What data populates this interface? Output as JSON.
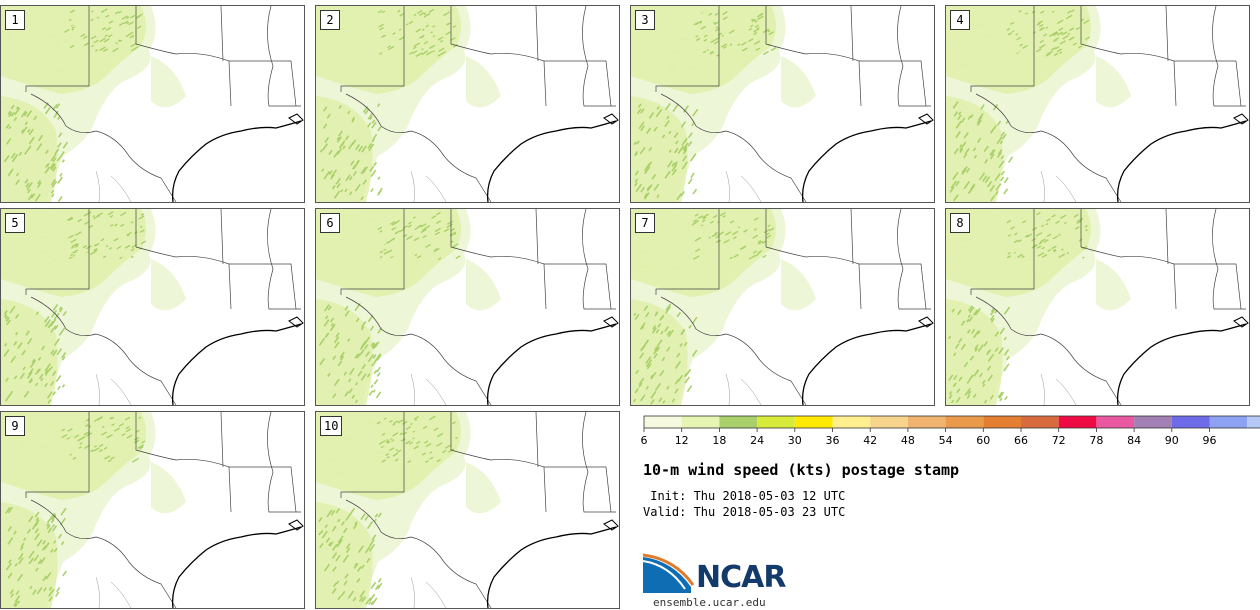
{
  "title": "10-m wind speed (kts) postage stamp",
  "init": " Init: Thu 2018-05-03 12 UTC",
  "valid": "Valid: Thu 2018-05-03 23 UTC",
  "logo_text": "NCAR",
  "site": "ensemble.ucar.edu",
  "members": [
    "1",
    "2",
    "3",
    "4",
    "5",
    "6",
    "7",
    "8",
    "9",
    "10"
  ],
  "colors": {
    "light": "#eef6d8",
    "mid": "#dff0a8",
    "strong": "#a9d06a",
    "border": "#555555",
    "coast": "#000000"
  },
  "colorbar": {
    "ticks": [
      "6",
      "12",
      "18",
      "24",
      "30",
      "36",
      "42",
      "48",
      "54",
      "60",
      "66",
      "72",
      "78",
      "84",
      "90",
      "96"
    ],
    "colors": [
      "#f5fadf",
      "#e6f4b4",
      "#a9d06a",
      "#d8ea3a",
      "#ffe900",
      "#ffef8e",
      "#f7d48c",
      "#f1b470",
      "#e99a4a",
      "#e47f32",
      "#d86b3d",
      "#ee0a42",
      "#e958a0",
      "#a27fb4",
      "#6e6be8",
      "#8da2f2",
      "#b6c8f6"
    ]
  }
}
